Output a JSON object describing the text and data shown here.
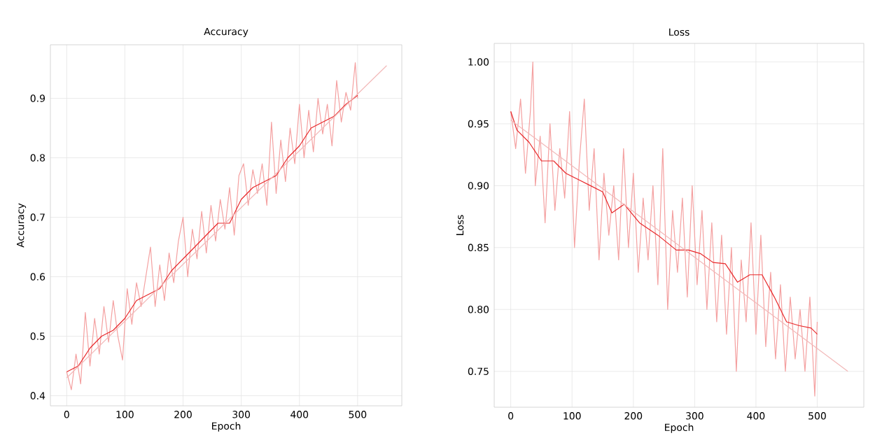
{
  "chart_data": [
    {
      "type": "line",
      "title": "Accuracy",
      "xlabel": "Epoch",
      "ylabel": "Accuracy",
      "xlim": [
        -28,
        576
      ],
      "ylim": [
        0.383,
        0.99
      ],
      "xticks": [
        0,
        100,
        200,
        300,
        400,
        500
      ],
      "yticks": [
        0.4,
        0.5,
        0.6,
        0.7,
        0.8,
        0.9
      ],
      "grid": true,
      "series": [
        {
          "color": "#f4a0a0",
          "x": [
            0,
            8,
            16,
            24,
            32,
            40,
            48,
            56,
            64,
            72,
            80,
            88,
            96,
            104,
            112,
            120,
            128,
            136,
            144,
            152,
            160,
            168,
            176,
            184,
            192,
            200,
            208,
            216,
            224,
            232,
            240,
            248,
            256,
            264,
            272,
            280,
            288,
            296,
            304,
            312,
            320,
            328,
            336,
            344,
            352,
            360,
            368,
            376,
            384,
            392,
            400,
            408,
            416,
            424,
            432,
            440,
            448,
            456,
            464,
            472,
            480,
            488,
            496,
            500
          ],
          "values": [
            0.44,
            0.41,
            0.47,
            0.42,
            0.54,
            0.45,
            0.53,
            0.47,
            0.55,
            0.49,
            0.56,
            0.5,
            0.46,
            0.58,
            0.52,
            0.59,
            0.55,
            0.6,
            0.65,
            0.55,
            0.62,
            0.56,
            0.64,
            0.59,
            0.66,
            0.7,
            0.6,
            0.68,
            0.63,
            0.71,
            0.64,
            0.72,
            0.66,
            0.73,
            0.68,
            0.75,
            0.67,
            0.77,
            0.79,
            0.72,
            0.78,
            0.74,
            0.79,
            0.72,
            0.86,
            0.74,
            0.83,
            0.76,
            0.85,
            0.79,
            0.89,
            0.8,
            0.88,
            0.81,
            0.9,
            0.84,
            0.89,
            0.82,
            0.93,
            0.86,
            0.91,
            0.88,
            0.96,
            0.9
          ]
        },
        {
          "color": "#e8282a",
          "x": [
            0,
            20,
            40,
            60,
            80,
            100,
            120,
            140,
            160,
            180,
            200,
            220,
            240,
            260,
            280,
            300,
            320,
            340,
            360,
            380,
            400,
            420,
            440,
            460,
            480,
            500
          ],
          "values": [
            0.44,
            0.45,
            0.48,
            0.5,
            0.51,
            0.53,
            0.56,
            0.57,
            0.58,
            0.61,
            0.63,
            0.65,
            0.67,
            0.69,
            0.69,
            0.73,
            0.75,
            0.76,
            0.77,
            0.8,
            0.82,
            0.85,
            0.86,
            0.87,
            0.89,
            0.905
          ]
        },
        {
          "color": "#f2b8b8",
          "x": [
            0,
            550
          ],
          "values": [
            0.43,
            0.955
          ]
        }
      ]
    },
    {
      "type": "line",
      "title": "Loss",
      "xlabel": "Epoch",
      "ylabel": "Loss",
      "xlim": [
        -27,
        576
      ],
      "ylim": [
        0.721,
        1.015
      ],
      "xticks": [
        0,
        100,
        200,
        300,
        400,
        500
      ],
      "yticks": [
        {
          "value": 0.75,
          "label": "0.75"
        },
        {
          "value": 0.8,
          "label": "0.80"
        },
        {
          "value": 0.85,
          "label": "0.85"
        },
        {
          "value": 0.9,
          "label": "0.90"
        },
        {
          "value": 0.95,
          "label": "0.95"
        },
        {
          "value": 1.0,
          "label": "1.00"
        }
      ],
      "grid": true,
      "series": [
        {
          "color": "#f4a0a0",
          "x": [
            0,
            8,
            16,
            24,
            32,
            36,
            40,
            48,
            56,
            64,
            72,
            80,
            88,
            96,
            104,
            112,
            120,
            128,
            136,
            144,
            152,
            160,
            168,
            176,
            184,
            192,
            200,
            208,
            216,
            224,
            232,
            240,
            248,
            256,
            264,
            272,
            280,
            288,
            296,
            304,
            312,
            320,
            328,
            336,
            344,
            352,
            360,
            368,
            376,
            384,
            392,
            400,
            408,
            416,
            424,
            432,
            440,
            448,
            456,
            464,
            472,
            480,
            488,
            496,
            500
          ],
          "values": [
            0.96,
            0.93,
            0.97,
            0.91,
            0.96,
            1.0,
            0.9,
            0.94,
            0.87,
            0.95,
            0.88,
            0.93,
            0.89,
            0.96,
            0.85,
            0.92,
            0.97,
            0.88,
            0.93,
            0.84,
            0.91,
            0.86,
            0.9,
            0.84,
            0.93,
            0.85,
            0.91,
            0.83,
            0.89,
            0.84,
            0.9,
            0.82,
            0.93,
            0.8,
            0.88,
            0.83,
            0.89,
            0.81,
            0.9,
            0.82,
            0.88,
            0.8,
            0.87,
            0.79,
            0.86,
            0.78,
            0.85,
            0.75,
            0.84,
            0.79,
            0.87,
            0.78,
            0.86,
            0.77,
            0.83,
            0.76,
            0.82,
            0.75,
            0.81,
            0.76,
            0.8,
            0.75,
            0.81,
            0.73,
            0.79
          ]
        },
        {
          "color": "#e8282a",
          "x": [
            0,
            10,
            30,
            50,
            70,
            90,
            110,
            130,
            150,
            165,
            185,
            210,
            240,
            270,
            290,
            310,
            330,
            350,
            370,
            390,
            410,
            430,
            450,
            470,
            490,
            500
          ],
          "values": [
            0.96,
            0.945,
            0.935,
            0.92,
            0.92,
            0.91,
            0.905,
            0.9,
            0.895,
            0.878,
            0.885,
            0.87,
            0.86,
            0.848,
            0.848,
            0.845,
            0.838,
            0.837,
            0.822,
            0.828,
            0.828,
            0.81,
            0.79,
            0.787,
            0.785,
            0.78
          ]
        },
        {
          "color": "#f2b8b8",
          "x": [
            0,
            550
          ],
          "values": [
            0.953,
            0.75
          ]
        }
      ]
    }
  ]
}
